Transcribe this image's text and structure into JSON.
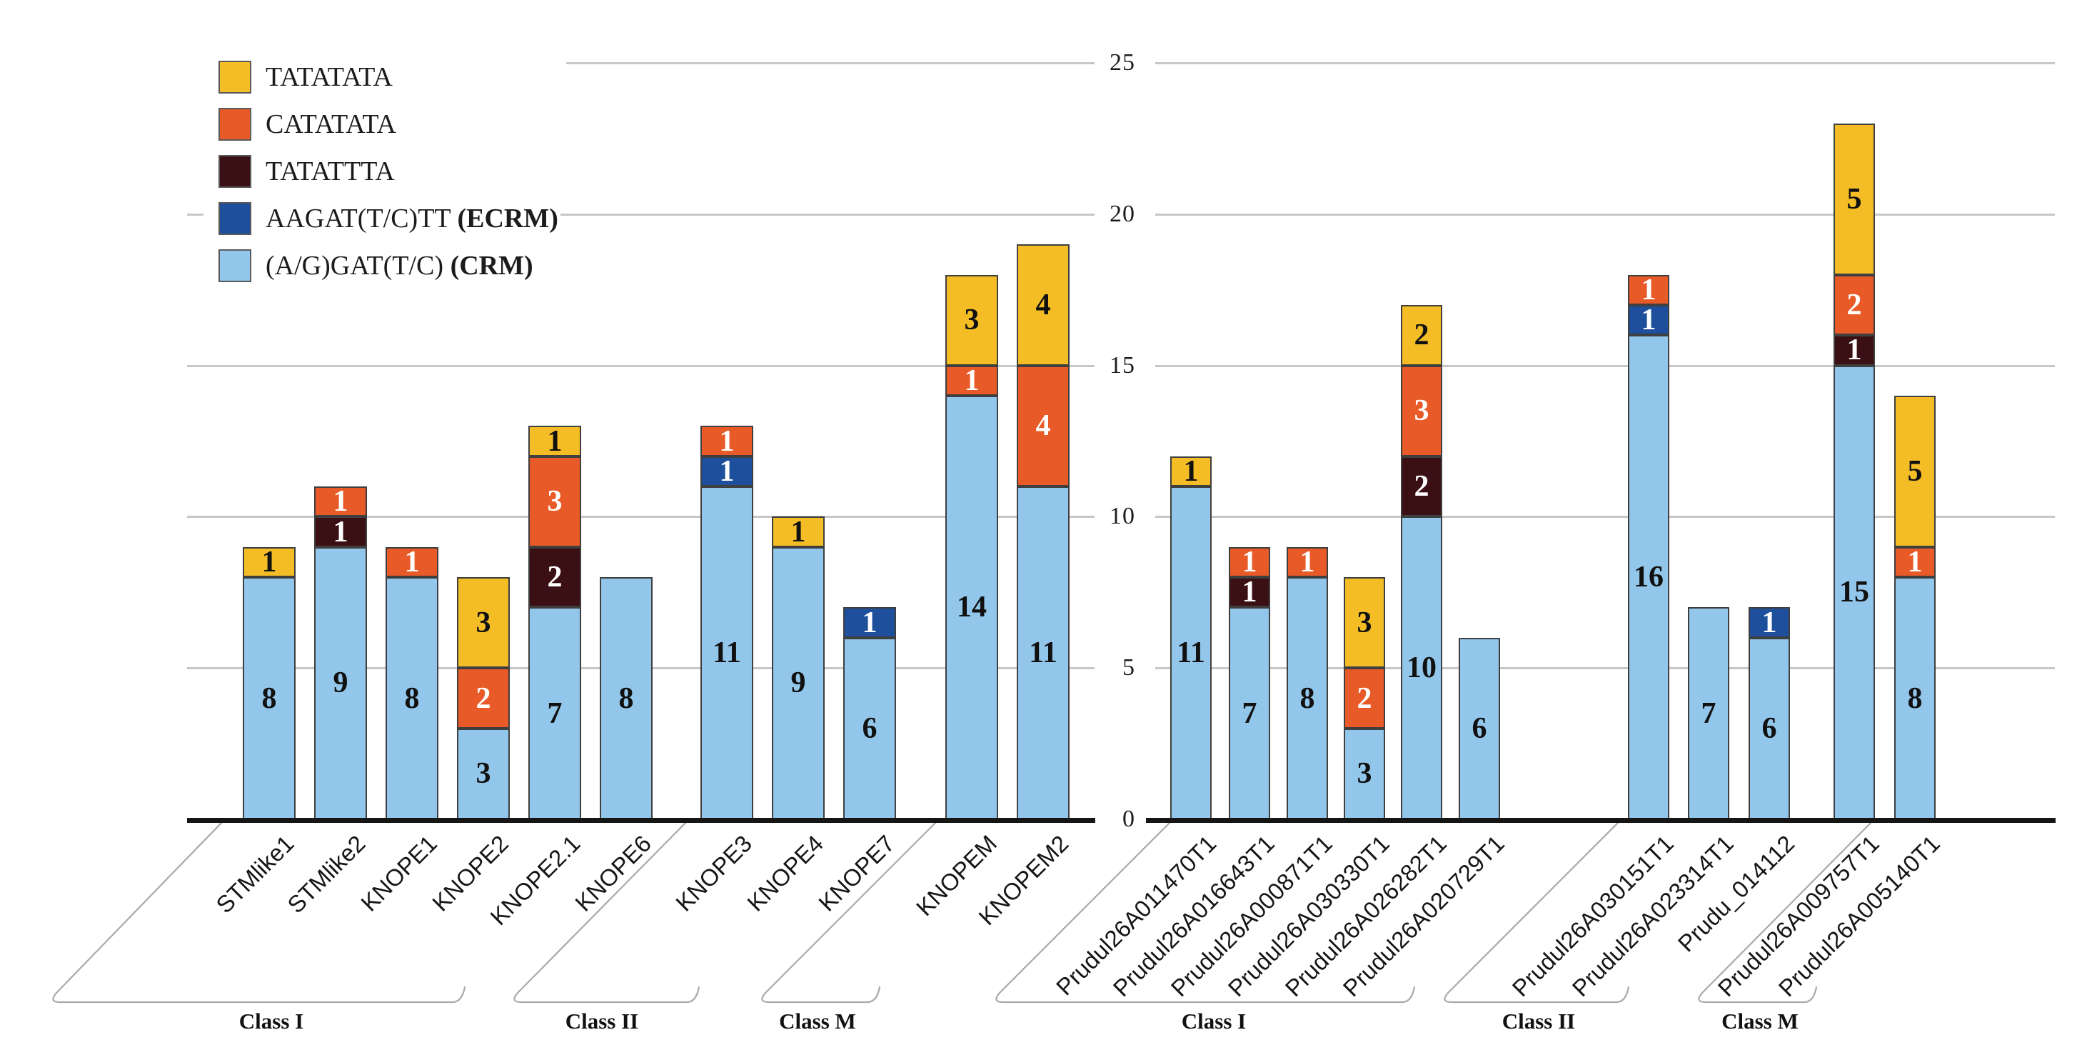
{
  "legend": {
    "items": [
      {
        "series": "TATATATA",
        "label": "TATATATA",
        "label_bold": "",
        "color": "#F4BD26"
      },
      {
        "series": "CATATATA",
        "label": "CATATATA",
        "label_bold": "",
        "color": "#E85B28"
      },
      {
        "series": "TATATTTA",
        "label": "TATATTTA",
        "label_bold": "",
        "color": "#3B1015"
      },
      {
        "series": "ECRM",
        "label": "AAGAT(T/C)TT ",
        "label_bold": "(ECRM)",
        "color": "#1D4F9C"
      },
      {
        "series": "CRM",
        "label": "(A/G)GAT(T/C) ",
        "label_bold": "(CRM)",
        "color": "#92C6EA"
      }
    ]
  },
  "chart_data": {
    "type": "bar",
    "stacked": true,
    "title": "",
    "xlabel": "",
    "ylabel": "",
    "ylim": [
      0,
      25
    ],
    "yticks": [
      0,
      5,
      10,
      15,
      20,
      25
    ],
    "grid": true,
    "legend_position": "top-left",
    "stack_order": [
      "CRM",
      "ECRM",
      "TATATTTA",
      "CATATATA",
      "TATATATA"
    ],
    "series_meta": {
      "TATATATA": {
        "motif": "TATATATA",
        "color": "#F4BD26",
        "number_color": "#111111"
      },
      "CATATATA": {
        "motif": "CATATATA",
        "color": "#E85B28",
        "number_color": "#ffffff"
      },
      "TATATTTA": {
        "motif": "TATATTTA",
        "color": "#3B1015",
        "number_color": "#ffffff"
      },
      "ECRM": {
        "motif": "AAGAT(T/C)TT",
        "color": "#1D4F9C",
        "number_color": "#ffffff"
      },
      "CRM": {
        "motif": "(A/G)GAT(T/C)",
        "color": "#92C6EA",
        "number_color": "#111111"
      }
    },
    "panels": [
      {
        "id": "left",
        "class_groups": [
          {
            "label": "Class I"
          },
          {
            "label": "Class II"
          },
          {
            "label": "Class M"
          }
        ],
        "bars": [
          {
            "gene": "STMlike1",
            "class": "Class I",
            "total": 9,
            "values": {
              "CRM": 8,
              "TATATATA": 1
            }
          },
          {
            "gene": "STMlike2",
            "class": "Class I",
            "total": 11,
            "values": {
              "CRM": 9,
              "TATATTTA": 1,
              "CATATATA": 1
            }
          },
          {
            "gene": "KNOPE1",
            "class": "Class I",
            "total": 9,
            "values": {
              "CRM": 8,
              "CATATATA": 1
            }
          },
          {
            "gene": "KNOPE2",
            "class": "Class I",
            "total": 8,
            "values": {
              "CRM": 3,
              "CATATATA": 2,
              "TATATATA": 3
            }
          },
          {
            "gene": "KNOPE2.1",
            "class": "Class I",
            "total": 13,
            "values": {
              "CRM": 7,
              "TATATTTA": 2,
              "CATATATA": 3,
              "TATATATA": 1
            }
          },
          {
            "gene": "KNOPE6",
            "class": "Class I",
            "total": 8,
            "values": {
              "CRM": 8
            }
          },
          {
            "gene": "KNOPE3",
            "class": "Class II",
            "total": 13,
            "values": {
              "CRM": 11,
              "ECRM": 1,
              "CATATATA": 1
            }
          },
          {
            "gene": "KNOPE4",
            "class": "Class II",
            "total": 10,
            "values": {
              "CRM": 9,
              "TATATATA": 1
            }
          },
          {
            "gene": "KNOPE7",
            "class": "Class II",
            "total": 7,
            "values": {
              "CRM": 6,
              "ECRM": 1
            }
          },
          {
            "gene": "KNOPEM",
            "class": "Class M",
            "total": 18,
            "values": {
              "CRM": 14,
              "CATATATA": 1,
              "TATATATA": 3
            }
          },
          {
            "gene": "KNOPEM2",
            "class": "Class M",
            "total": 19,
            "values": {
              "CRM": 11,
              "CATATATA": 4,
              "TATATATA": 4
            }
          }
        ]
      },
      {
        "id": "right",
        "class_groups": [
          {
            "label": "Class I"
          },
          {
            "label": "Class II"
          },
          {
            "label": "Class M"
          }
        ],
        "bars": [
          {
            "gene": "Prudul26A011470T1",
            "class": "Class I",
            "total": 12,
            "values": {
              "CRM": 11,
              "TATATATA": 1
            }
          },
          {
            "gene": "Prudul26A016643T1",
            "class": "Class I",
            "total": 9,
            "values": {
              "CRM": 7,
              "TATATTTA": 1,
              "CATATATA": 1
            }
          },
          {
            "gene": "Prudul26A000871T1",
            "class": "Class I",
            "total": 9,
            "values": {
              "CRM": 8,
              "CATATATA": 1
            }
          },
          {
            "gene": "Prudul26A030330T1",
            "class": "Class I",
            "total": 8,
            "values": {
              "CRM": 3,
              "CATATATA": 2,
              "TATATATA": 3
            }
          },
          {
            "gene": "Prudul26A026282T1",
            "class": "Class I",
            "total": 17,
            "values": {
              "CRM": 10,
              "TATATTTA": 2,
              "CATATATA": 3,
              "TATATATA": 2
            }
          },
          {
            "gene": "Prudul26A020729T1",
            "class": "Class I",
            "total": 6,
            "values": {
              "CRM": 6
            }
          },
          {
            "gene": "Prudul26A030151T1",
            "class": "Class II",
            "total": 18,
            "values": {
              "CRM": 16,
              "ECRM": 1,
              "CATATATA": 1
            }
          },
          {
            "gene": "Prudul26A023314T1",
            "class": "Class II",
            "total": 7,
            "values": {
              "CRM": 7
            }
          },
          {
            "gene": "Prudu_014112",
            "class": "Class II",
            "total": 7,
            "values": {
              "CRM": 6,
              "ECRM": 1
            }
          },
          {
            "gene": "Prudul26A009757T1",
            "class": "Class M",
            "total": 23,
            "values": {
              "CRM": 15,
              "TATATTTA": 1,
              "CATATATA": 2,
              "TATATATA": 5
            }
          },
          {
            "gene": "Prudul26A005140T1",
            "class": "Class M",
            "total": 14,
            "values": {
              "CRM": 8,
              "CATATATA": 1,
              "TATATATA": 5
            }
          }
        ]
      }
    ]
  }
}
